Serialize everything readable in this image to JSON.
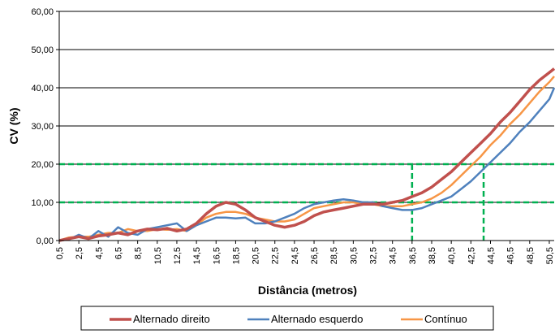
{
  "chart_data": {
    "type": "line",
    "xlabel": "Distância (metros)",
    "ylabel": "CV (%)",
    "ylim": [
      0,
      60
    ],
    "yticks": [
      "0,00",
      "10,00",
      "20,00",
      "30,00",
      "40,00",
      "50,00",
      "60,00"
    ],
    "xlim": [
      0.5,
      51
    ],
    "xticks": [
      "0,5",
      "2,5",
      "4,5",
      "6,5",
      "8,5",
      "10,5",
      "12,5",
      "14,5",
      "16,5",
      "18,5",
      "20,5",
      "22,5",
      "24,5",
      "26,5",
      "28,5",
      "30,5",
      "32,5",
      "34,5",
      "36,5",
      "38,5",
      "40,5",
      "42,5",
      "44,5",
      "46,5",
      "48,5",
      "50,5"
    ],
    "grid": "horizontal",
    "legend_position": "bottom",
    "series": [
      {
        "name": "Alternado direito",
        "color": "#c0504d",
        "x": [
          0.5,
          1.5,
          2.5,
          3.5,
          4.5,
          5.5,
          6.5,
          7.5,
          8.5,
          9.5,
          10.5,
          11.5,
          12.5,
          13.5,
          14.5,
          15.5,
          16.5,
          17.5,
          18.5,
          19.5,
          20.5,
          21.5,
          22.5,
          23.5,
          24.5,
          25.5,
          26.5,
          27.5,
          28.5,
          29.5,
          30.5,
          31.5,
          32.5,
          33.5,
          34.5,
          35.5,
          36.5,
          37.5,
          38.5,
          39.5,
          40.5,
          41.5,
          42.5,
          43.5,
          44.5,
          45.5,
          46.5,
          47.5,
          48.5,
          49.5,
          50.5,
          51
        ],
        "values": [
          0,
          0.5,
          1,
          0.5,
          1.2,
          1.5,
          2,
          1.5,
          2.5,
          3,
          2.8,
          3.2,
          2.5,
          3,
          4.5,
          7,
          9,
          10,
          9.5,
          8,
          6,
          5,
          4,
          3.5,
          4,
          5,
          6.5,
          7.5,
          8,
          8.5,
          9,
          9.5,
          9.5,
          9.5,
          10,
          10.5,
          11.5,
          12.5,
          14,
          16,
          18,
          20.5,
          23,
          25.5,
          28,
          31,
          33.5,
          36.5,
          39.5,
          42,
          44,
          45
        ]
      },
      {
        "name": "Alternado esquerdo",
        "color": "#4f81bd",
        "x": [
          0.5,
          1.5,
          2.5,
          3.5,
          4.5,
          5.5,
          6.5,
          7.5,
          8.5,
          9.5,
          10.5,
          11.5,
          12.5,
          13.5,
          14.5,
          15.5,
          16.5,
          17.5,
          18.5,
          19.5,
          20.5,
          21.5,
          22.5,
          23.5,
          24.5,
          25.5,
          26.5,
          27.5,
          28.5,
          29.5,
          30.5,
          31.5,
          32.5,
          33.5,
          34.5,
          35.5,
          36.5,
          37.5,
          38.5,
          39.5,
          40.5,
          41.5,
          42.5,
          43.5,
          44.5,
          45.5,
          46.5,
          47.5,
          48.5,
          49.5,
          50.5,
          51
        ],
        "values": [
          0,
          0.3,
          1.5,
          0.5,
          2.5,
          1,
          3.5,
          2,
          1.5,
          3,
          3.5,
          4,
          4.5,
          2.5,
          4,
          5,
          6,
          6,
          5.8,
          6,
          4.5,
          4.5,
          5,
          6,
          7,
          8.5,
          9.5,
          10,
          10.5,
          10.8,
          10.5,
          10,
          10,
          9,
          8.5,
          8,
          8,
          8.5,
          9.5,
          10.5,
          11.5,
          13.5,
          15.5,
          18,
          20.5,
          23,
          25.5,
          28.5,
          31,
          34,
          37,
          40
        ]
      },
      {
        "name": "Contínuo",
        "color": "#f79646",
        "x": [
          0.5,
          1.5,
          2.5,
          3.5,
          4.5,
          5.5,
          6.5,
          7.5,
          8.5,
          9.5,
          10.5,
          11.5,
          12.5,
          13.5,
          14.5,
          15.5,
          16.5,
          17.5,
          18.5,
          19.5,
          20.5,
          21.5,
          22.5,
          23.5,
          24.5,
          25.5,
          26.5,
          27.5,
          28.5,
          29.5,
          30.5,
          31.5,
          32.5,
          33.5,
          34.5,
          35.5,
          36.5,
          37.5,
          38.5,
          39.5,
          40.5,
          41.5,
          42.5,
          43.5,
          44.5,
          45.5,
          46.5,
          47.5,
          48.5,
          49.5,
          50.5,
          51
        ],
        "values": [
          0,
          0.8,
          1,
          1,
          1.5,
          2,
          2,
          3,
          2.5,
          2.5,
          3,
          2.8,
          3,
          2.5,
          4,
          6,
          7,
          7.5,
          7.5,
          7,
          6,
          5.5,
          5,
          5,
          5.5,
          7,
          8.5,
          9,
          9.5,
          10,
          10,
          9.5,
          9.5,
          9,
          9,
          9,
          9.5,
          10,
          11,
          12.5,
          14.5,
          17,
          19.5,
          22,
          25,
          27.5,
          30.5,
          33,
          36,
          39,
          41.5,
          43
        ]
      }
    ],
    "reference_lines": {
      "color": "#00b050",
      "horizontal_y": [
        10,
        20
      ],
      "vertical_x": [
        36.5,
        43.8
      ]
    }
  }
}
